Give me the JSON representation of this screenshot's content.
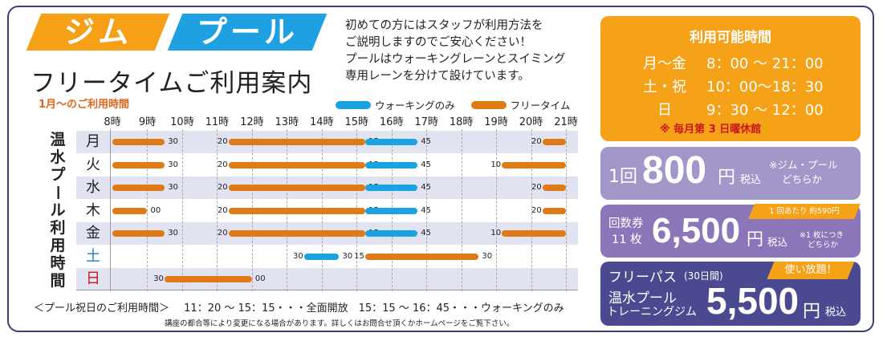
{
  "header": {
    "tab_gym": "ジム",
    "tab_pool": "プール",
    "title": "フリータイムご利用案内",
    "hours_note": "1月～のご利用時間",
    "intro": [
      "初めての方にはスタッフが利用方法を",
      "ご説明しますのでご安心ください！",
      "プールはウォーキングレーンとスイミング",
      "専用レーンを分けて設けています。"
    ]
  },
  "legend": {
    "walking": "ウォーキングのみ",
    "free": "フリータイム"
  },
  "colors": {
    "orange": "#e07a16",
    "blue": "#1aa3e0",
    "accent": "#f6a219",
    "navy": "#3a3f7a"
  },
  "schedule": {
    "vertical_label": [
      "温",
      "水",
      "プ",
      "ー",
      "ル",
      "利",
      "用",
      "時",
      "間"
    ],
    "hours": [
      "8時",
      "9時",
      "10時",
      "11時",
      "12時",
      "13時",
      "14時",
      "15時",
      "16時",
      "17時",
      "18時",
      "19時",
      "20時",
      "21時"
    ],
    "days": [
      {
        "name": "月",
        "color": "#222222",
        "segments": [
          {
            "start": 8,
            "end": 9.5,
            "type": "free",
            "labels": [
              "",
              "30"
            ]
          },
          {
            "start": 11.333,
            "end": 15.25,
            "type": "free",
            "labels": [
              "20",
              "15"
            ]
          },
          {
            "start": 15.25,
            "end": 16.75,
            "type": "walking",
            "labels": [
              "",
              "45"
            ]
          },
          {
            "start": 20.333,
            "end": 21,
            "type": "free",
            "labels": [
              "20",
              ""
            ]
          }
        ]
      },
      {
        "name": "火",
        "color": "#222222",
        "segments": [
          {
            "start": 8,
            "end": 9.5,
            "type": "free",
            "labels": [
              "",
              "30"
            ]
          },
          {
            "start": 11.333,
            "end": 15.25,
            "type": "free",
            "labels": [
              "20",
              "15"
            ]
          },
          {
            "start": 15.25,
            "end": 16.75,
            "type": "walking",
            "labels": [
              "",
              "45"
            ]
          },
          {
            "start": 19.167,
            "end": 21,
            "type": "free",
            "labels": [
              "10",
              ""
            ]
          }
        ]
      },
      {
        "name": "水",
        "color": "#222222",
        "segments": [
          {
            "start": 8,
            "end": 9.5,
            "type": "free",
            "labels": [
              "",
              "30"
            ]
          },
          {
            "start": 11.333,
            "end": 15.25,
            "type": "free",
            "labels": [
              "20",
              "15"
            ]
          },
          {
            "start": 15.25,
            "end": 16.75,
            "type": "walking",
            "labels": [
              "",
              "45"
            ]
          },
          {
            "start": 20.333,
            "end": 21,
            "type": "free",
            "labels": [
              "20",
              ""
            ]
          }
        ]
      },
      {
        "name": "木",
        "color": "#222222",
        "segments": [
          {
            "start": 8,
            "end": 9,
            "type": "free",
            "labels": [
              "",
              "00"
            ]
          },
          {
            "start": 11.333,
            "end": 15.25,
            "type": "free",
            "labels": [
              "20",
              "15"
            ]
          },
          {
            "start": 15.25,
            "end": 16.75,
            "type": "walking",
            "labels": [
              "",
              "45"
            ]
          },
          {
            "start": 20.333,
            "end": 21,
            "type": "free",
            "labels": [
              "20",
              ""
            ]
          }
        ]
      },
      {
        "name": "金",
        "color": "#222222",
        "segments": [
          {
            "start": 8,
            "end": 9.5,
            "type": "free",
            "labels": [
              "",
              "30"
            ]
          },
          {
            "start": 11.333,
            "end": 15.25,
            "type": "free",
            "labels": [
              "20",
              "15"
            ]
          },
          {
            "start": 15.25,
            "end": 16.75,
            "type": "walking",
            "labels": [
              "",
              "45"
            ]
          },
          {
            "start": 19.167,
            "end": 21,
            "type": "free",
            "labels": [
              "10",
              ""
            ]
          }
        ]
      },
      {
        "name": "土",
        "color": "#1a7fc8",
        "segments": [
          {
            "start": 13.5,
            "end": 14.5,
            "type": "walking",
            "labels": [
              "30",
              "30"
            ]
          },
          {
            "start": 15.25,
            "end": 18.5,
            "type": "free",
            "labels": [
              "15",
              "30"
            ]
          }
        ]
      },
      {
        "name": "日",
        "color": "#c8161d",
        "segments": [
          {
            "start": 9.5,
            "end": 12,
            "type": "free",
            "labels": [
              "30",
              "00"
            ]
          }
        ]
      }
    ]
  },
  "holiday": {
    "label": "＜プール祝日のご利用時間＞",
    "detail": "11：20 ～ 15：15・・・全面開放　15：15 ～ 16：45・・・ウォーキングのみ",
    "disclaimer": "講座の都合等により変更になる場合があります。詳しくはお問合せ頂くかホームページをご覧下さい。"
  },
  "available_hours": {
    "title": "利用可能時間",
    "rows": [
      {
        "day": "月～金",
        "time": "8：00 ～ 21：00"
      },
      {
        "day": "土・祝",
        "time": "10：00～18：30"
      },
      {
        "day": "日",
        "time": "9：30 ～ 12：00"
      }
    ],
    "closed": "※ 毎月第 3 日曜休館"
  },
  "pricing": {
    "single": {
      "prefix": "1回",
      "price": "800",
      "yen": "円",
      "tax": "税込",
      "note": [
        "※ジム・プール",
        "どちらか"
      ]
    },
    "coupon": {
      "label": [
        "回数券",
        "11 枚"
      ],
      "price": "6,500",
      "yen": "円",
      "tax": "税込",
      "note": [
        "※1 枚につき",
        "どちらか"
      ],
      "ribbon": "1 回あたり 約590円"
    },
    "pass": {
      "title": "フリーパス",
      "period": "(30日間)",
      "ribbon": "使い放題！",
      "label": [
        "温水プール",
        "トレーニングジム"
      ],
      "price": "5,500",
      "yen": "円",
      "tax": "税込"
    }
  }
}
